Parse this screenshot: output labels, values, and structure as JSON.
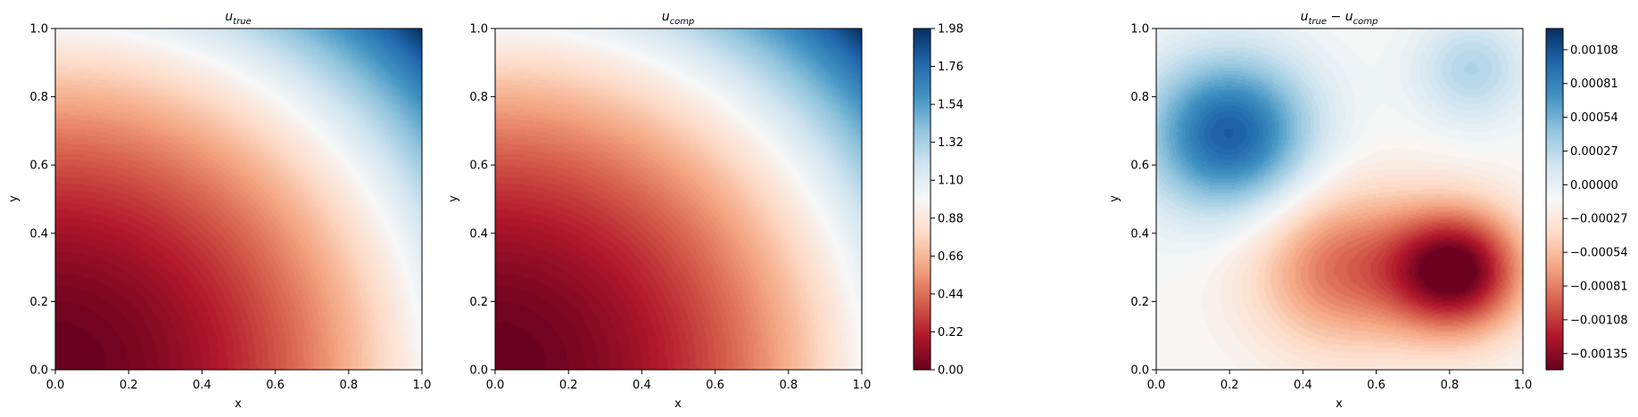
{
  "chart_data": [
    {
      "type": "heatmap",
      "title": "u_true",
      "title_main": "u",
      "title_sub": "true",
      "xlabel": "x",
      "ylabel": "y",
      "xlim": [
        0.0,
        1.0
      ],
      "ylim": [
        0.0,
        1.0
      ],
      "xticks": [
        "0.0",
        "0.2",
        "0.4",
        "0.6",
        "0.8",
        "1.0"
      ],
      "yticks": [
        "0.0",
        "0.2",
        "0.4",
        "0.6",
        "0.8",
        "1.0"
      ],
      "colormap": "RdBu",
      "field": "u(x, y) = x^2 + y^2",
      "value_range": [
        0.0,
        2.0
      ]
    },
    {
      "type": "heatmap",
      "title": "u_comp",
      "title_main": "u",
      "title_sub": "comp",
      "xlabel": "x",
      "ylabel": "y",
      "xlim": [
        0.0,
        1.0
      ],
      "ylim": [
        0.0,
        1.0
      ],
      "xticks": [
        "0.0",
        "0.2",
        "0.4",
        "0.6",
        "0.8",
        "1.0"
      ],
      "yticks": [
        "0.0",
        "0.2",
        "0.4",
        "0.6",
        "0.8",
        "1.0"
      ],
      "colormap": "RdBu",
      "field": "u(x, y) = x^2 + y^2",
      "value_range": [
        0.0,
        2.0
      ],
      "colorbar": {
        "min": 0.0,
        "max": 1.98,
        "ticks": [
          "0.00",
          "0.22",
          "0.44",
          "0.66",
          "0.88",
          "1.10",
          "1.32",
          "1.54",
          "1.76",
          "1.98"
        ]
      }
    },
    {
      "type": "heatmap",
      "title": "u_true − u_comp",
      "title_main1": "u",
      "title_sub1": "true",
      "title_op": " − ",
      "title_main2": "u",
      "title_sub2": "comp",
      "xlabel": "x",
      "ylabel": "y",
      "xlim": [
        0.0,
        1.0
      ],
      "ylim": [
        0.0,
        1.0
      ],
      "xticks": [
        "0.0",
        "0.2",
        "0.4",
        "0.6",
        "0.8",
        "1.0"
      ],
      "yticks": [
        "0.0",
        "0.2",
        "0.4",
        "0.6",
        "0.8",
        "1.0"
      ],
      "colormap": "RdBu",
      "error_peaks": [
        {
          "x": 0.2,
          "y": 0.69,
          "value": 0.00125
        },
        {
          "x": 0.86,
          "y": 0.88,
          "value": 0.00045
        },
        {
          "x": 0.82,
          "y": 0.29,
          "value": -0.00148
        },
        {
          "x": 0.5,
          "y": 0.3,
          "value": -0.0008
        }
      ],
      "colorbar": {
        "min": -0.00148,
        "max": 0.00125,
        "ticks": [
          "−0.00135",
          "−0.00108",
          "−0.00081",
          "−0.00054",
          "−0.00027",
          "0.00000",
          "0.00027",
          "0.00054",
          "0.00081",
          "0.00108"
        ],
        "tick_values": [
          -0.00135,
          -0.00108,
          -0.00081,
          -0.00054,
          -0.00027,
          0.0,
          0.00027,
          0.00054,
          0.00081,
          0.00108
        ]
      }
    }
  ]
}
